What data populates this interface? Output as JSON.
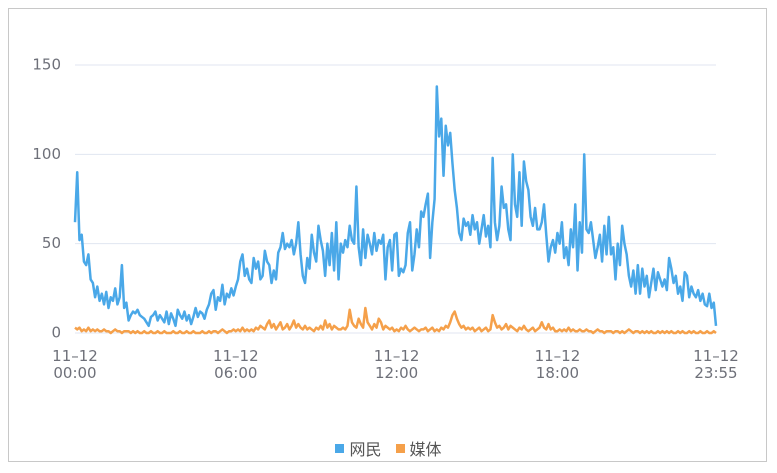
{
  "chart_data": {
    "type": "line",
    "categories": [
      "11–12\n00:00",
      null,
      null,
      null,
      null,
      null,
      null,
      null,
      null,
      null,
      null,
      null,
      null,
      null,
      null,
      null,
      null,
      null,
      null,
      null,
      null,
      null,
      null,
      null,
      null,
      null,
      null,
      null,
      null,
      null,
      null,
      null,
      null,
      null,
      null,
      null,
      null,
      null,
      null,
      null,
      null,
      null,
      null,
      null,
      null,
      null,
      null,
      null,
      null,
      null,
      null,
      null,
      null,
      null,
      null,
      null,
      null,
      null,
      null,
      null,
      null,
      null,
      null,
      null,
      null,
      null,
      null,
      null,
      null,
      null,
      null,
      null,
      "11–12\n06:00",
      null,
      null,
      null,
      null,
      null,
      null,
      null,
      null,
      null,
      null,
      null,
      null,
      null,
      null,
      null,
      null,
      null,
      null,
      null,
      null,
      null,
      null,
      null,
      null,
      null,
      null,
      null,
      null,
      null,
      null,
      null,
      null,
      null,
      null,
      null,
      null,
      null,
      null,
      null,
      null,
      null,
      null,
      null,
      null,
      null,
      null,
      null,
      null,
      null,
      null,
      null,
      null,
      null,
      null,
      null,
      null,
      null,
      null,
      null,
      null,
      null,
      null,
      null,
      null,
      null,
      null,
      null,
      null,
      null,
      null,
      null,
      "11–12\n12:00",
      null,
      null,
      null,
      null,
      null,
      null,
      null,
      null,
      null,
      null,
      null,
      null,
      null,
      null,
      null,
      null,
      null,
      null,
      null,
      null,
      null,
      null,
      null,
      null,
      null,
      null,
      null,
      null,
      null,
      null,
      null,
      null,
      null,
      null,
      null,
      null,
      null,
      null,
      null,
      null,
      null,
      null,
      null,
      null,
      null,
      null,
      null,
      null,
      null,
      null,
      null,
      null,
      null,
      null,
      null,
      null,
      null,
      null,
      null,
      null,
      null,
      null,
      null,
      null,
      null,
      null,
      null,
      null,
      null,
      null,
      null,
      "11–12\n18:00",
      null,
      null,
      null,
      null,
      null,
      null,
      null,
      null,
      null,
      null,
      null,
      null,
      null,
      null,
      null,
      null,
      null,
      null,
      null,
      null,
      null,
      null,
      null,
      null,
      null,
      null,
      null,
      null,
      null,
      null,
      null,
      null,
      null,
      null,
      null,
      null,
      null,
      null,
      null,
      null,
      null,
      null,
      null,
      null,
      null,
      null,
      null,
      null,
      null,
      null,
      null,
      null,
      null,
      null,
      null,
      null,
      null,
      null,
      null,
      null,
      null,
      null,
      null,
      null,
      null,
      null,
      null,
      null,
      null,
      null,
      "11–12\n23:55"
    ],
    "series": [
      {
        "name": "网民",
        "color": "#4aa8e8",
        "values": [
          62,
          90,
          52,
          55,
          40,
          38,
          44,
          30,
          28,
          20,
          26,
          18,
          22,
          16,
          23,
          14,
          20,
          18,
          25,
          16,
          20,
          38,
          14,
          17,
          7,
          10,
          12,
          11,
          13,
          10,
          9,
          8,
          6,
          4,
          9,
          10,
          12,
          7,
          10,
          8,
          6,
          12,
          5,
          11,
          8,
          4,
          13,
          10,
          8,
          12,
          7,
          10,
          5,
          9,
          14,
          9,
          12,
          11,
          8,
          13,
          16,
          22,
          24,
          13,
          20,
          18,
          27,
          16,
          22,
          20,
          25,
          21,
          26,
          30,
          40,
          44,
          32,
          36,
          30,
          28,
          42,
          36,
          40,
          30,
          32,
          46,
          40,
          38,
          28,
          35,
          30,
          45,
          48,
          56,
          47,
          50,
          48,
          52,
          44,
          50,
          62,
          44,
          32,
          28,
          42,
          36,
          55,
          45,
          40,
          60,
          52,
          46,
          32,
          50,
          38,
          56,
          35,
          62,
          30,
          50,
          45,
          52,
          48,
          60,
          52,
          50,
          82,
          48,
          38,
          58,
          42,
          55,
          50,
          44,
          56,
          46,
          52,
          50,
          55,
          30,
          48,
          52,
          35,
          55,
          56,
          32,
          36,
          34,
          38,
          56,
          62,
          35,
          44,
          58,
          48,
          68,
          65,
          72,
          78,
          42,
          62,
          75,
          138,
          110,
          120,
          88,
          116,
          105,
          112,
          95,
          80,
          70,
          56,
          52,
          64,
          60,
          62,
          55,
          66,
          58,
          62,
          50,
          58,
          66,
          54,
          60,
          48,
          98,
          62,
          52,
          60,
          82,
          70,
          72,
          58,
          52,
          100,
          72,
          65,
          90,
          60,
          96,
          85,
          80,
          65,
          60,
          70,
          58,
          58,
          62,
          72,
          55,
          40,
          48,
          52,
          45,
          56,
          50,
          62,
          42,
          48,
          38,
          58,
          48,
          72,
          35,
          62,
          45,
          100,
          58,
          56,
          62,
          52,
          42,
          48,
          55,
          40,
          60,
          44,
          65,
          44,
          48,
          30,
          50,
          38,
          60,
          50,
          44,
          32,
          26,
          35,
          22,
          38,
          22,
          36,
          26,
          32,
          20,
          28,
          36,
          24,
          34,
          30,
          26,
          30,
          24,
          42,
          36,
          28,
          32,
          22,
          26,
          18,
          34,
          32,
          20,
          26,
          22,
          20,
          24,
          18,
          22,
          16,
          15,
          22,
          14,
          17,
          4
        ]
      },
      {
        "name": "媒体",
        "color": "#f5a04a",
        "values": [
          3,
          2,
          3,
          1,
          2,
          1,
          3,
          1,
          2,
          1,
          2,
          1,
          1,
          2,
          1,
          1,
          0,
          1,
          2,
          1,
          1,
          0,
          1,
          1,
          1,
          0,
          1,
          0,
          1,
          0,
          0,
          1,
          0,
          0,
          1,
          0,
          0,
          1,
          0,
          0,
          1,
          0,
          0,
          0,
          1,
          0,
          0,
          1,
          0,
          0,
          1,
          0,
          0,
          1,
          0,
          0,
          0,
          1,
          0,
          0,
          1,
          0,
          1,
          1,
          0,
          1,
          2,
          1,
          0,
          1,
          1,
          2,
          1,
          2,
          1,
          3,
          1,
          2,
          1,
          2,
          1,
          3,
          2,
          4,
          3,
          2,
          5,
          7,
          3,
          5,
          2,
          4,
          6,
          2,
          3,
          5,
          2,
          4,
          7,
          3,
          5,
          3,
          2,
          4,
          2,
          3,
          2,
          1,
          3,
          2,
          4,
          2,
          7,
          3,
          5,
          2,
          4,
          3,
          2,
          2,
          3,
          2,
          4,
          13,
          6,
          4,
          3,
          8,
          5,
          3,
          14,
          6,
          4,
          2,
          5,
          3,
          8,
          6,
          2,
          4,
          3,
          2,
          3,
          1,
          2,
          1,
          3,
          2,
          4,
          2,
          1,
          2,
          3,
          2,
          1,
          2,
          2,
          3,
          1,
          2,
          3,
          1,
          2,
          1,
          3,
          2,
          4,
          3,
          6,
          10,
          12,
          8,
          5,
          3,
          4,
          2,
          3,
          2,
          3,
          1,
          2,
          3,
          1,
          2,
          3,
          1,
          2,
          10,
          6,
          3,
          4,
          2,
          3,
          5,
          2,
          4,
          3,
          2,
          1,
          3,
          2,
          4,
          2,
          1,
          2,
          3,
          1,
          2,
          3,
          6,
          3,
          2,
          5,
          2,
          3,
          1,
          1,
          2,
          1,
          2,
          1,
          3,
          1,
          2,
          1,
          1,
          2,
          1,
          1,
          2,
          1,
          1,
          0,
          1,
          2,
          1,
          1,
          0,
          1,
          1,
          1,
          0,
          1,
          1,
          0,
          1,
          0,
          1,
          2,
          1,
          0,
          1,
          1,
          0,
          1,
          0,
          1,
          0,
          1,
          0,
          0,
          1,
          0,
          1,
          0,
          1,
          0,
          1,
          0,
          0,
          1,
          0,
          1,
          0,
          0,
          1,
          0,
          1,
          0,
          0,
          1,
          0,
          0,
          1,
          0,
          0,
          1,
          0
        ]
      }
    ],
    "ylim": [
      0,
      150
    ],
    "yticks": [
      0,
      50,
      100,
      150
    ],
    "grid": true,
    "legend": "bottom"
  }
}
